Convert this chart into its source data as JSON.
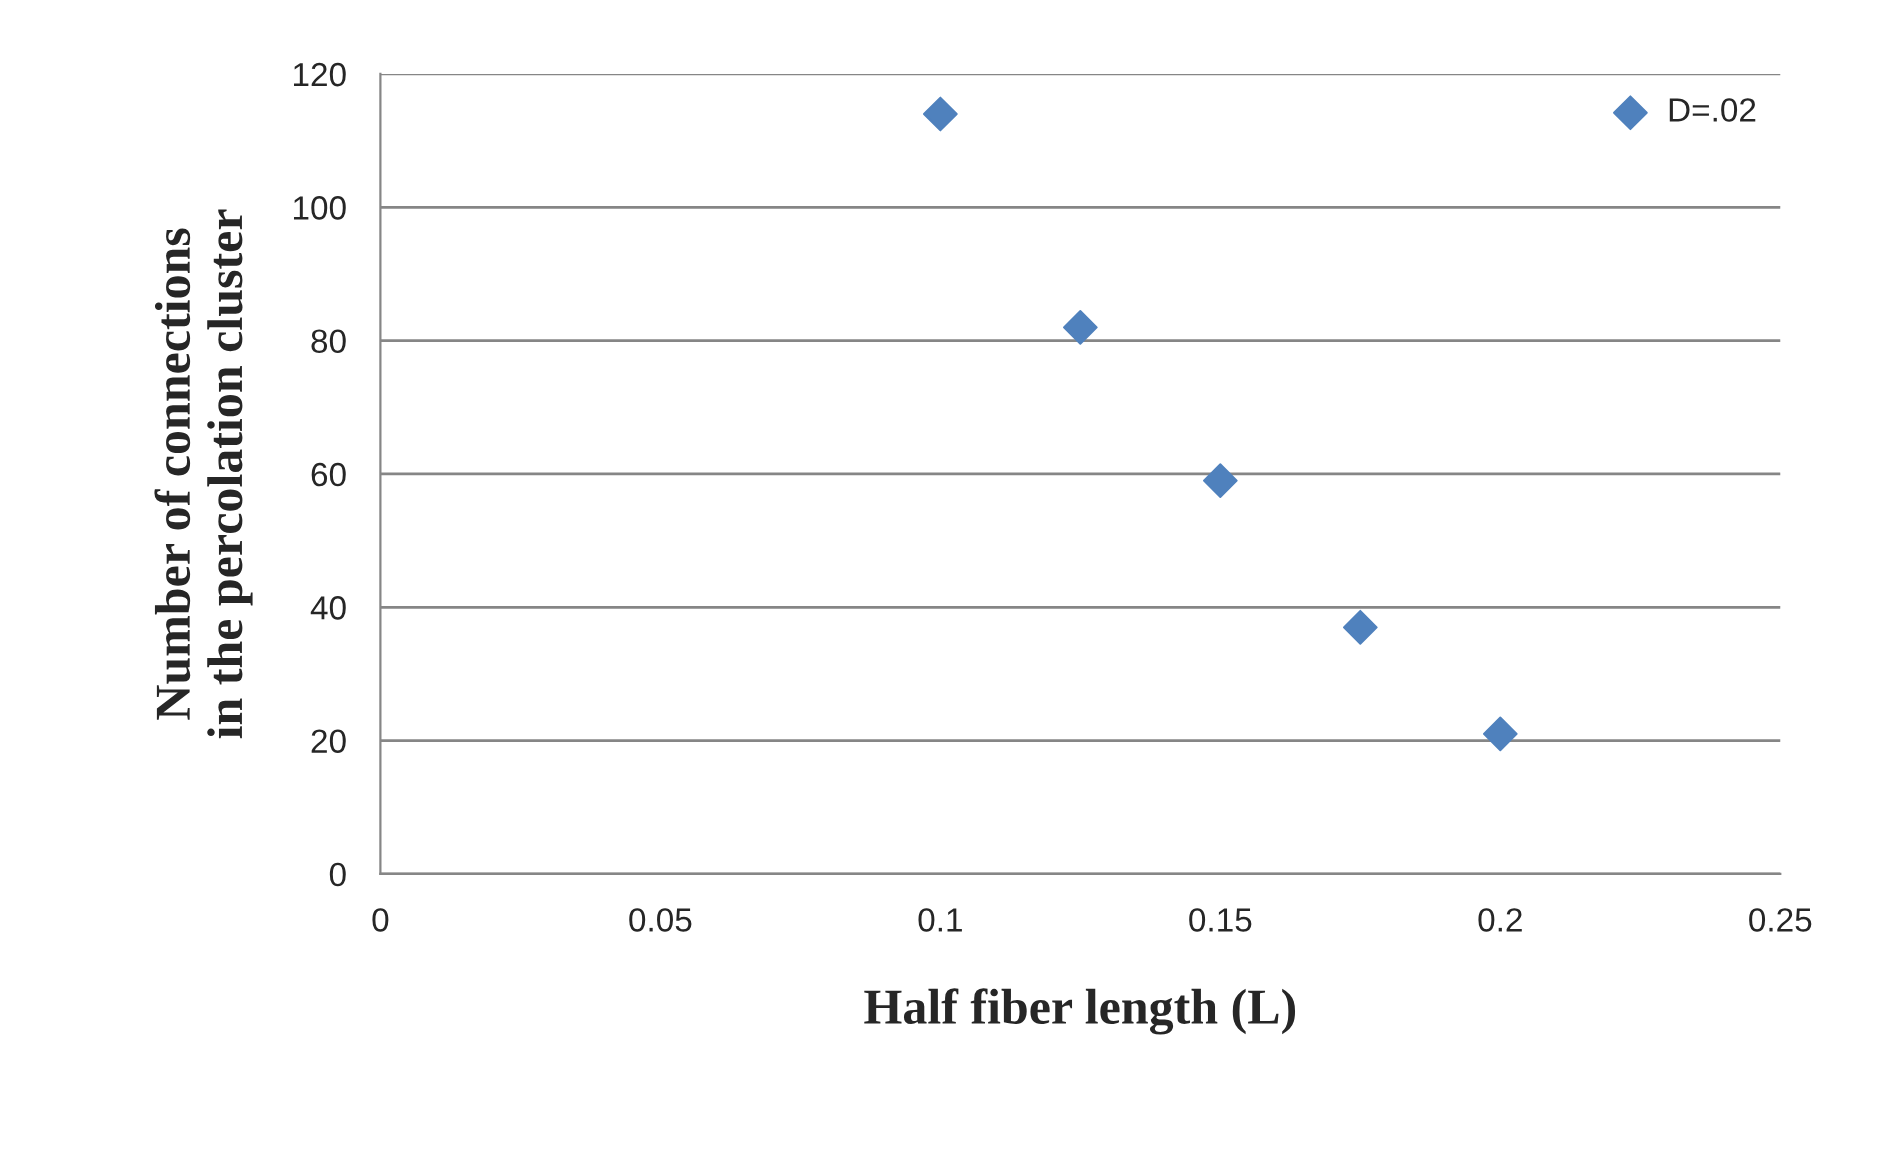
{
  "chart_data": {
    "type": "scatter",
    "xlabel": "Half fiber length (L)",
    "ylabel": "Number of connections\nin the percolation cluster",
    "x": [
      0.1,
      0.125,
      0.15,
      0.175,
      0.2
    ],
    "series": [
      {
        "name": "D=.02",
        "color": "#4f81bd",
        "values": [
          114,
          82,
          59,
          37,
          21
        ]
      }
    ],
    "xlim": [
      0,
      0.25
    ],
    "xticks": [
      0,
      0.05,
      0.1,
      0.15,
      0.2,
      0.25
    ],
    "ylim": [
      0,
      120
    ],
    "yticks": [
      0,
      20,
      40,
      60,
      80,
      100,
      120
    ],
    "grid": "y",
    "legend": "top right",
    "marker": "diamond"
  }
}
